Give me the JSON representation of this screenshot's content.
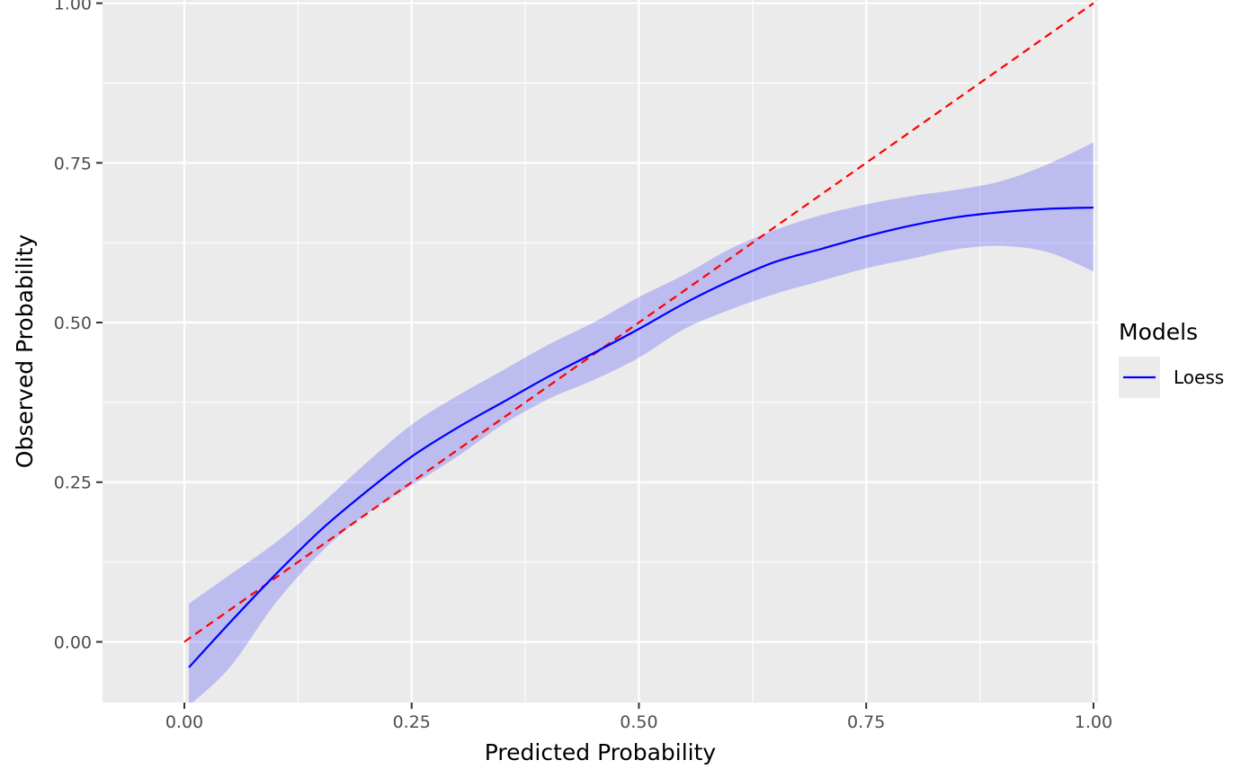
{
  "chart_data": {
    "type": "line",
    "title": "",
    "xlabel": "Predicted Probability",
    "ylabel": "Observed Probability",
    "xlim": [
      -0.09,
      1.005
    ],
    "ylim": [
      -0.095,
      1.005
    ],
    "x_ticks": [
      0.0,
      0.25,
      0.5,
      0.75,
      1.0
    ],
    "x_tick_labels": [
      "0.00",
      "0.25",
      "0.50",
      "0.75",
      "1.00"
    ],
    "y_ticks": [
      0.0,
      0.25,
      0.5,
      0.75,
      1.0
    ],
    "y_tick_labels": [
      "0.00",
      "0.25",
      "0.50",
      "0.75",
      "1.00"
    ],
    "grid": true,
    "legend": {
      "title": "Models",
      "placement": "right",
      "entries": [
        {
          "label": "Loess",
          "color": "#0000ff"
        }
      ]
    },
    "series": [
      {
        "name": "Loess",
        "color": "#0000ff",
        "x": [
          0.005,
          0.05,
          0.1,
          0.15,
          0.2,
          0.25,
          0.3,
          0.35,
          0.4,
          0.45,
          0.5,
          0.55,
          0.6,
          0.65,
          0.7,
          0.75,
          0.8,
          0.85,
          0.9,
          0.95,
          1.0
        ],
        "y": [
          -0.04,
          0.03,
          0.105,
          0.175,
          0.235,
          0.29,
          0.335,
          0.375,
          0.415,
          0.452,
          0.49,
          0.53,
          0.565,
          0.595,
          0.615,
          0.635,
          0.652,
          0.665,
          0.673,
          0.678,
          0.68
        ],
        "ci_lower": [
          -0.1,
          -0.04,
          0.06,
          0.14,
          0.2,
          0.245,
          0.29,
          0.34,
          0.38,
          0.41,
          0.445,
          0.49,
          0.52,
          0.545,
          0.565,
          0.585,
          0.6,
          0.615,
          0.62,
          0.61,
          0.58
        ],
        "ci_upper": [
          0.06,
          0.105,
          0.155,
          0.215,
          0.28,
          0.34,
          0.385,
          0.425,
          0.465,
          0.5,
          0.54,
          0.575,
          0.615,
          0.645,
          0.668,
          0.685,
          0.698,
          0.708,
          0.722,
          0.748,
          0.782
        ]
      }
    ],
    "reference_line": {
      "style": "dashed",
      "color": "#ff0000",
      "x": [
        0.0,
        1.0
      ],
      "y": [
        0.0,
        1.0
      ]
    },
    "colors": {
      "panel_background": "#ebebeb",
      "grid": "#ffffff",
      "ribbon": "#0000ff",
      "ribbon_alpha": 0.2
    }
  }
}
